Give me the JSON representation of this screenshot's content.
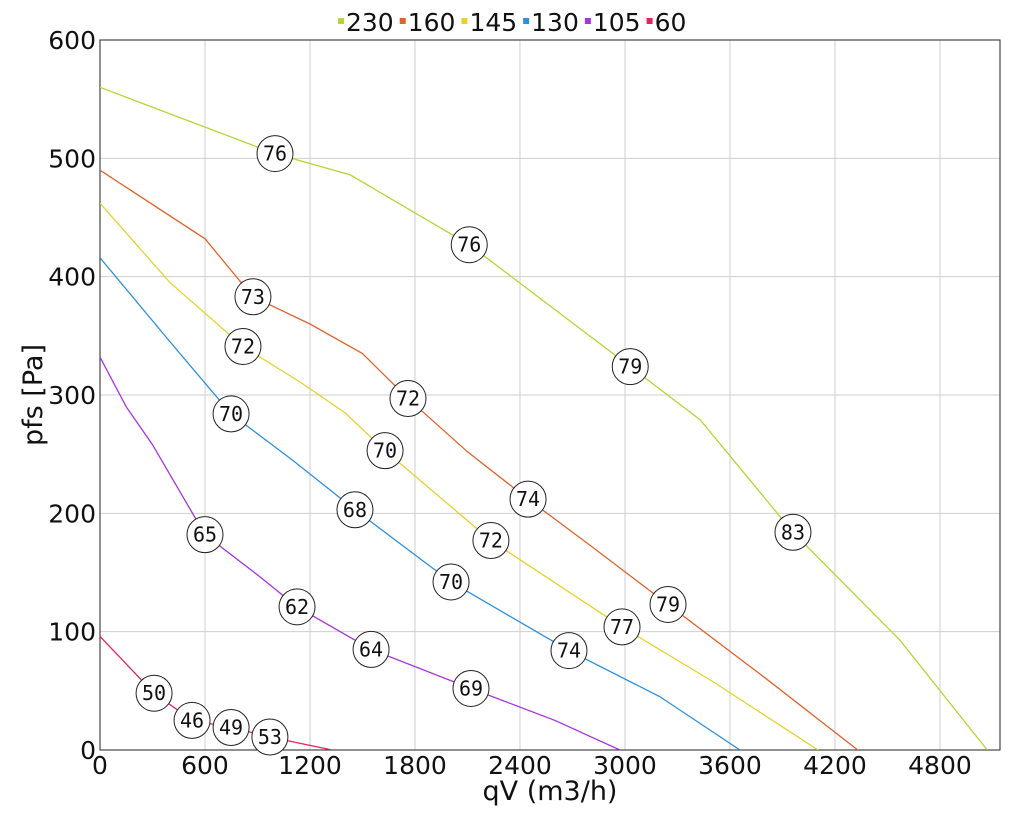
{
  "chart_data": {
    "type": "line",
    "xlabel": "qV (m3/h)",
    "ylabel": "pfs [Pa]",
    "xlim": [
      0,
      5143
    ],
    "ylim": [
      0,
      600
    ],
    "xticks": [
      0,
      600,
      1200,
      1800,
      2400,
      3000,
      3600,
      4200,
      4800
    ],
    "yticks": [
      0,
      100,
      200,
      300,
      400,
      500,
      600
    ],
    "grid": true,
    "legend": "top",
    "series": [
      {
        "name": "230",
        "color": "#b4d633",
        "x": [
          0,
          1000,
          1430,
          2110,
          3030,
          3430,
          3960,
          4570,
          5070
        ],
        "values": [
          560,
          504,
          486,
          427,
          324,
          279,
          184,
          93,
          0
        ],
        "markers": {
          "x": [
            1000,
            2110,
            3030,
            3960
          ],
          "y": [
            504,
            427,
            324,
            184
          ],
          "labels": [
            76,
            76,
            79,
            83
          ]
        }
      },
      {
        "name": "160",
        "color": "#e2622c",
        "x": [
          0,
          600,
          874,
          1200,
          1500,
          1760,
          2100,
          2446,
          2800,
          3246,
          3800,
          4330
        ],
        "values": [
          490,
          432,
          383,
          360,
          335,
          297,
          252,
          212,
          173,
          123,
          61,
          0
        ],
        "markers": {
          "x": [
            874,
            1760,
            2446,
            3246
          ],
          "y": [
            383,
            297,
            212,
            123
          ],
          "labels": [
            73,
            72,
            74,
            79
          ]
        }
      },
      {
        "name": "145",
        "color": "#e6d22c",
        "x": [
          0,
          400,
          817,
          1143,
          1400,
          1629,
          2234,
          2983,
          3500,
          4103
        ],
        "values": [
          462,
          395,
          341,
          311,
          285,
          253,
          177,
          104,
          58,
          0
        ],
        "markers": {
          "x": [
            817,
            1629,
            2234,
            2983
          ],
          "y": [
            341,
            253,
            177,
            104
          ],
          "labels": [
            72,
            70,
            72,
            77
          ]
        }
      },
      {
        "name": "130",
        "color": "#2c90dc",
        "x": [
          0,
          400,
          749,
          1100,
          1457,
          2006,
          2680,
          3200,
          3657
        ],
        "values": [
          416,
          345,
          284,
          245,
          203,
          142,
          84,
          45,
          0
        ],
        "markers": {
          "x": [
            749,
            1457,
            2006,
            2680
          ],
          "y": [
            284,
            203,
            142,
            84
          ],
          "labels": [
            70,
            68,
            70,
            74
          ]
        }
      },
      {
        "name": "105",
        "color": "#a634e2",
        "x": [
          0,
          150,
          300,
          600,
          900,
          1126,
          1549,
          2120,
          2600,
          2971
        ],
        "values": [
          332,
          290,
          258,
          182,
          148,
          121,
          85,
          52,
          25,
          0
        ],
        "markers": {
          "x": [
            600,
            1126,
            1549,
            2120
          ],
          "y": [
            182,
            121,
            85,
            52
          ],
          "labels": [
            65,
            62,
            64,
            69
          ]
        }
      },
      {
        "name": "60",
        "color": "#e2255e",
        "x": [
          0,
          309,
          526,
          749,
          971,
          1326
        ],
        "values": [
          96,
          48,
          25,
          19,
          11,
          0
        ],
        "markers": {
          "x": [
            309,
            526,
            749,
            971
          ],
          "y": [
            48,
            25,
            19,
            11
          ],
          "labels": [
            50,
            46,
            49,
            53
          ]
        }
      }
    ]
  }
}
